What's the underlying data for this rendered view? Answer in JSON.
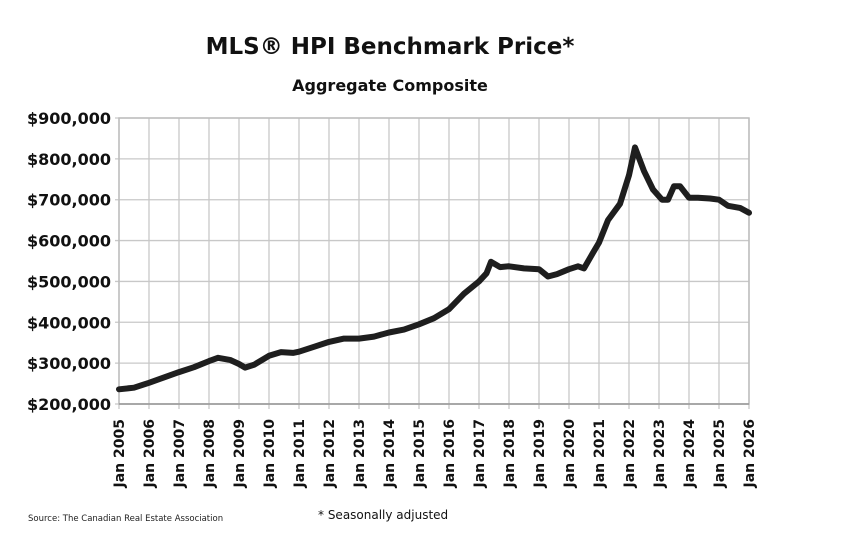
{
  "chart_data": {
    "type": "line",
    "title": "MLS® HPI Benchmark Price*",
    "subtitle": "Aggregate Composite",
    "xlabel": "",
    "ylabel": "",
    "xlim": [
      2005,
      2026
    ],
    "ylim": [
      200000,
      900000
    ],
    "grid": true,
    "legend": "none",
    "line_color": "#1e1e1e",
    "y_ticks": [
      200000,
      300000,
      400000,
      500000,
      600000,
      700000,
      800000,
      900000
    ],
    "y_tick_labels": [
      "$200,000",
      "$300,000",
      "$400,000",
      "$500,000",
      "$600,000",
      "$700,000",
      "$800,000",
      "$900,000"
    ],
    "x_ticks": [
      2005,
      2006,
      2007,
      2008,
      2009,
      2010,
      2011,
      2012,
      2013,
      2014,
      2015,
      2016,
      2017,
      2018,
      2019,
      2020,
      2021,
      2022,
      2023,
      2024,
      2025,
      2026
    ],
    "x_tick_labels": [
      "Jan 2005",
      "Jan 2006",
      "Jan 2007",
      "Jan 2008",
      "Jan 2009",
      "Jan 2010",
      "Jan 2011",
      "Jan 2012",
      "Jan 2013",
      "Jan 2014",
      "Jan 2015",
      "Jan 2016",
      "Jan 2017",
      "Jan 2018",
      "Jan 2019",
      "Jan 2020",
      "Jan 2021",
      "Jan 2022",
      "Jan 2023",
      "Jan 2024",
      "Jan 2025",
      "Jan 2026"
    ],
    "series": [
      {
        "x": [
          2005.0,
          2005.5,
          2006.0,
          2006.5,
          2007.0,
          2007.5,
          2008.0,
          2008.3,
          2008.7,
          2009.0,
          2009.2,
          2009.5,
          2010.0,
          2010.4,
          2010.8,
          2011.0,
          2011.5,
          2012.0,
          2012.5,
          2013.0,
          2013.5,
          2014.0,
          2014.5,
          2015.0,
          2015.5,
          2016.0,
          2016.5,
          2017.0,
          2017.25,
          2017.4,
          2017.7,
          2018.0,
          2018.5,
          2019.0,
          2019.3,
          2019.6,
          2020.0,
          2020.3,
          2020.5,
          2020.8,
          2021.0,
          2021.3,
          2021.7,
          2022.0,
          2022.2,
          2022.5,
          2022.8,
          2023.1,
          2023.3,
          2023.5,
          2023.7,
          2024.0,
          2024.3,
          2024.7,
          2025.0,
          2025.3,
          2025.7,
          2026.0
        ],
        "y": [
          236000,
          240000,
          252000,
          265000,
          278000,
          290000,
          305000,
          313000,
          308000,
          298000,
          289000,
          296000,
          318000,
          327000,
          325000,
          328000,
          340000,
          352000,
          360000,
          360000,
          365000,
          375000,
          382000,
          395000,
          410000,
          432000,
          470000,
          500000,
          520000,
          548000,
          535000,
          537000,
          532000,
          530000,
          512000,
          518000,
          530000,
          537000,
          532000,
          570000,
          595000,
          650000,
          690000,
          760000,
          828000,
          770000,
          725000,
          700000,
          700000,
          733000,
          733000,
          705000,
          705000,
          703000,
          700000,
          685000,
          680000,
          668000
        ]
      }
    ],
    "source": "Source: The Canadian Real Estate Association",
    "note": "* Seasonally adjusted"
  }
}
